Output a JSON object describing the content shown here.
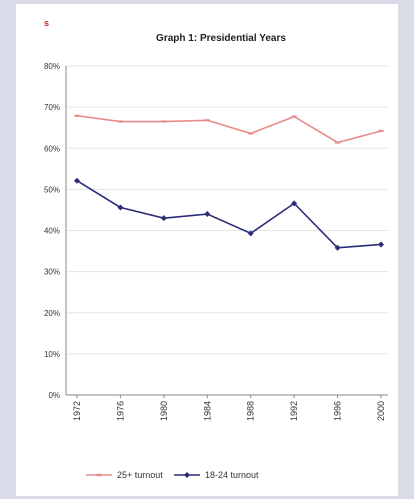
{
  "corner_mark": "s",
  "chart_data": {
    "type": "line",
    "title": "Graph 1: Presidential Years",
    "xlabel": "",
    "ylabel": "",
    "categories": [
      "1972",
      "1976",
      "1980",
      "1984",
      "1988",
      "1992",
      "1996",
      "2000"
    ],
    "y_ticks": [
      "0%",
      "10%",
      "20%",
      "30%",
      "40%",
      "50%",
      "60%",
      "70%",
      "80%"
    ],
    "ylim": [
      0,
      80
    ],
    "grid": true,
    "legend_position": "bottom",
    "series": [
      {
        "name": "25+ turnout",
        "color": "#e88a8a",
        "marker": "dash",
        "values": [
          67.9,
          66.5,
          66.5,
          66.8,
          63.6,
          67.7,
          61.4,
          64.2
        ]
      },
      {
        "name": "18-24 turnout",
        "color": "#2b2d7a",
        "marker": "diamond",
        "values": [
          52.1,
          45.6,
          43.0,
          44.0,
          39.3,
          46.6,
          35.8,
          36.6
        ]
      }
    ]
  }
}
